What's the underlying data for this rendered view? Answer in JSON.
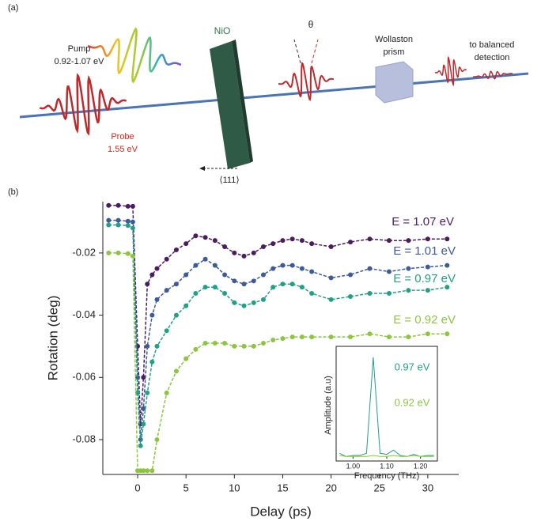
{
  "panel_a": {
    "label": "(a)",
    "pump": "Pump",
    "pump_energy": "0.92-1.07 eV",
    "probe": "Probe",
    "probe_energy": "1.55 eV",
    "sample": "NiO",
    "angle": "θ",
    "prism_1": "Wollaston",
    "prism_2": "prism",
    "detection_1": "to balanced",
    "detection_2": "detection",
    "axis": "⟨111⟩"
  },
  "panel_b": {
    "label": "(b)"
  },
  "chart_data": [
    {
      "type": "line",
      "x_label": "Delay (ps)",
      "y_label": "Rotation (deg)",
      "x": [
        -3,
        -2,
        -1,
        -0.5,
        0,
        0.3,
        0.6,
        1,
        1.5,
        2,
        3,
        4,
        5,
        6,
        7,
        8,
        9,
        10,
        11,
        12,
        13,
        14,
        15,
        16,
        17,
        18,
        20,
        22,
        24,
        26,
        28,
        30,
        32
      ],
      "xlim": [
        -3.6,
        33.2
      ],
      "xticks": [
        0,
        5,
        10,
        15,
        20,
        25,
        30
      ],
      "ylim": [
        -0.0912,
        -0.0035
      ],
      "yticks": [
        -0.02,
        -0.04,
        -0.06,
        -0.08
      ],
      "series": [
        {
          "name": "E = 1.07 eV",
          "color": "#4b1d5e",
          "values": [
            -0.0047,
            -0.0047,
            -0.005,
            -0.005,
            -0.05,
            -0.075,
            -0.06,
            -0.03,
            -0.027,
            -0.025,
            -0.022,
            -0.019,
            -0.017,
            -0.0145,
            -0.015,
            -0.016,
            -0.018,
            -0.02,
            -0.021,
            -0.02,
            -0.018,
            -0.017,
            -0.016,
            -0.0155,
            -0.016,
            -0.017,
            -0.018,
            -0.0165,
            -0.0155,
            -0.016,
            -0.016,
            -0.0155,
            -0.0155
          ]
        },
        {
          "name": "E = 1.01 eV",
          "color": "#3d5b98",
          "values": [
            -0.0095,
            -0.0095,
            -0.0098,
            -0.01,
            -0.06,
            -0.08,
            -0.07,
            -0.05,
            -0.04,
            -0.035,
            -0.032,
            -0.03,
            -0.027,
            -0.024,
            -0.022,
            -0.024,
            -0.027,
            -0.029,
            -0.03,
            -0.029,
            -0.027,
            -0.025,
            -0.024,
            -0.024,
            -0.025,
            -0.026,
            -0.028,
            -0.027,
            -0.025,
            -0.026,
            -0.025,
            -0.0245,
            -0.024
          ]
        },
        {
          "name": "E = 0.97 eV",
          "color": "#22a085",
          "values": [
            -0.011,
            -0.011,
            -0.0112,
            -0.012,
            -0.065,
            -0.082,
            -0.075,
            -0.065,
            -0.055,
            -0.05,
            -0.045,
            -0.04,
            -0.037,
            -0.033,
            -0.031,
            -0.031,
            -0.033,
            -0.036,
            -0.037,
            -0.036,
            -0.035,
            -0.031,
            -0.03,
            -0.03,
            -0.031,
            -0.033,
            -0.035,
            -0.034,
            -0.033,
            -0.033,
            -0.032,
            -0.032,
            -0.031
          ]
        },
        {
          "name": "E = 0.92 eV",
          "color": "#8cc63f",
          "values": [
            -0.02,
            -0.02,
            -0.0202,
            -0.021,
            -0.09,
            -0.09,
            -0.09,
            -0.09,
            -0.09,
            -0.08,
            -0.065,
            -0.058,
            -0.054,
            -0.051,
            -0.049,
            -0.049,
            -0.049,
            -0.05,
            -0.05,
            -0.05,
            -0.049,
            -0.048,
            -0.0475,
            -0.047,
            -0.047,
            -0.047,
            -0.047,
            -0.047,
            -0.046,
            -0.047,
            -0.047,
            -0.046,
            -0.046
          ]
        }
      ]
    },
    {
      "type": "line",
      "x_label": "Frequency (THz)",
      "y_label": "Amplitude (a.u)",
      "x": [
        0.96,
        0.98,
        1.0,
        1.02,
        1.04,
        1.06,
        1.08,
        1.1,
        1.12,
        1.14,
        1.16,
        1.18,
        1.2,
        1.22,
        1.24
      ],
      "xlim": [
        0.95,
        1.25
      ],
      "xticks": [
        {
          "value": 1.0,
          "label": "1.00"
        },
        {
          "value": 1.1,
          "label": "1.10"
        },
        {
          "value": 1.2,
          "label": "1.20"
        }
      ],
      "ylim": [
        0,
        1
      ],
      "series": [
        {
          "name": "0.97 eV",
          "color": "#22a085",
          "values": [
            0.05,
            0.02,
            0.03,
            0.03,
            0.05,
            0.95,
            0.05,
            0.04,
            0.08,
            0.03,
            0.02,
            0.04,
            0.02,
            0.03,
            0.03
          ]
        },
        {
          "name": "0.92 eV",
          "color": "#8cc63f",
          "values": [
            0.03,
            0.02,
            0.02,
            0.02,
            0.02,
            0.03,
            0.02,
            0.02,
            0.03,
            0.02,
            0.02,
            0.03,
            0.02,
            0.02,
            0.02
          ]
        }
      ]
    }
  ]
}
